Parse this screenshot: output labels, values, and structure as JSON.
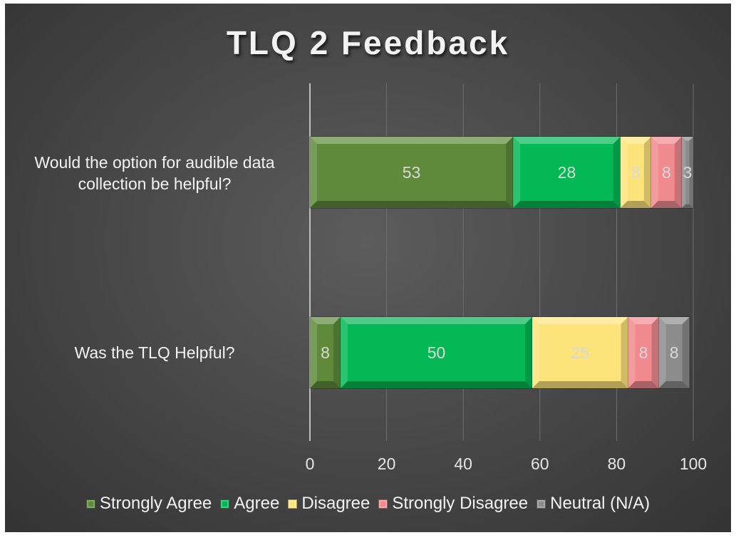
{
  "chart_data": {
    "type": "bar",
    "orientation": "horizontal",
    "stacked": true,
    "title": "TLQ 2 Feedback",
    "categories": [
      "Would the option for audible data collection be helpful?",
      "Was the TLQ Helpful?"
    ],
    "series": [
      {
        "name": "Strongly Agree",
        "color": "#5e8a3a",
        "values": [
          53,
          8
        ]
      },
      {
        "name": "Agree",
        "color": "#04b855",
        "values": [
          28,
          50
        ]
      },
      {
        "name": "Disagree",
        "color": "#fde47a",
        "values": [
          8,
          25
        ]
      },
      {
        "name": "Strongly Disagree",
        "color": "#f08a8f",
        "values": [
          8,
          8
        ]
      },
      {
        "name": "Neutral (N/A)",
        "color": "#8c8c8c",
        "values": [
          3,
          8
        ]
      }
    ],
    "x_ticks": [
      "0",
      "20",
      "40",
      "60",
      "80",
      "100"
    ],
    "xlim": [
      0,
      100
    ],
    "grid": true,
    "legend_position": "bottom"
  }
}
